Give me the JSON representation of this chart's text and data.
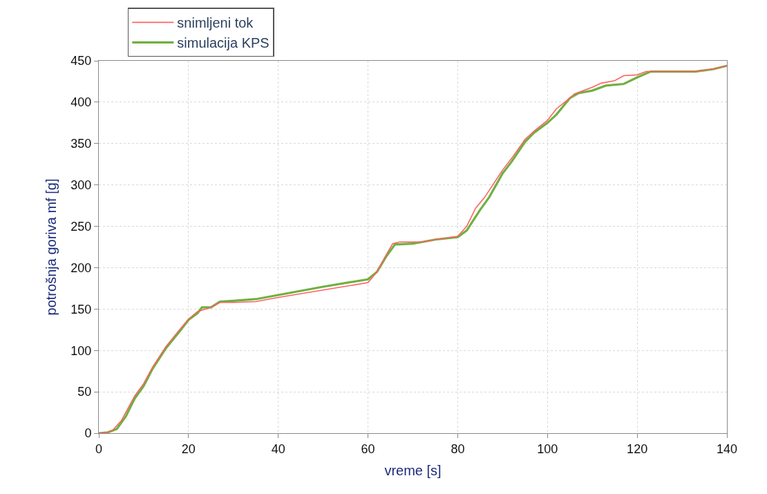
{
  "chart_data": {
    "type": "line",
    "xlabel": "vreme [s]",
    "ylabel": "potrošnja goriva mf [g]",
    "xlim": [
      0,
      140
    ],
    "ylim": [
      0,
      450
    ],
    "xticks": [
      0,
      20,
      40,
      60,
      80,
      100,
      120,
      140
    ],
    "yticks": [
      0,
      50,
      100,
      150,
      200,
      250,
      300,
      350,
      400,
      450
    ],
    "grid": true,
    "legend": "top left",
    "marker": "none",
    "line_style": "solid",
    "series": [
      {
        "name": "snimljeni tok",
        "color": "#ff6060",
        "x": [
          0,
          2,
          3,
          5,
          7,
          8,
          10,
          12,
          15,
          18,
          20,
          22,
          25,
          27,
          30,
          35,
          40,
          50,
          60,
          62,
          64,
          65.5,
          67,
          72,
          75,
          80,
          82,
          84,
          86,
          90,
          92,
          95,
          97,
          100,
          102,
          105,
          106,
          110,
          112,
          115,
          117,
          120,
          122,
          125,
          133,
          137,
          140
        ],
        "values": [
          0,
          1,
          3,
          15,
          35,
          45,
          60,
          80,
          105,
          125,
          138,
          147,
          152,
          158,
          158,
          159,
          164,
          173,
          182,
          195,
          215,
          229,
          231,
          231,
          234,
          238,
          250,
          272,
          285,
          318,
          332,
          355,
          365,
          378,
          392,
          405,
          410,
          418,
          423,
          426,
          432,
          433,
          437,
          437,
          437,
          440,
          444
        ]
      },
      {
        "name": "simulacija KPS",
        "color": "#6fb040",
        "x": [
          0,
          2,
          4,
          6,
          8,
          10,
          12,
          15,
          18,
          20,
          22,
          23,
          25,
          27,
          30,
          35,
          40,
          50,
          60,
          62,
          64,
          66,
          70,
          75,
          80,
          82,
          85,
          87,
          90,
          92,
          95,
          97,
          100,
          102,
          105,
          107,
          110,
          113,
          117,
          120,
          123,
          133,
          137,
          140
        ],
        "values": [
          0,
          1,
          5,
          20,
          42,
          57,
          78,
          103,
          123,
          137,
          145,
          152,
          152,
          159,
          160,
          162,
          167,
          177,
          186,
          195,
          213,
          228,
          229,
          234,
          237,
          245,
          270,
          285,
          314,
          328,
          352,
          363,
          375,
          385,
          405,
          411,
          414,
          420,
          422,
          430,
          437,
          437,
          440,
          444
        ]
      }
    ]
  }
}
